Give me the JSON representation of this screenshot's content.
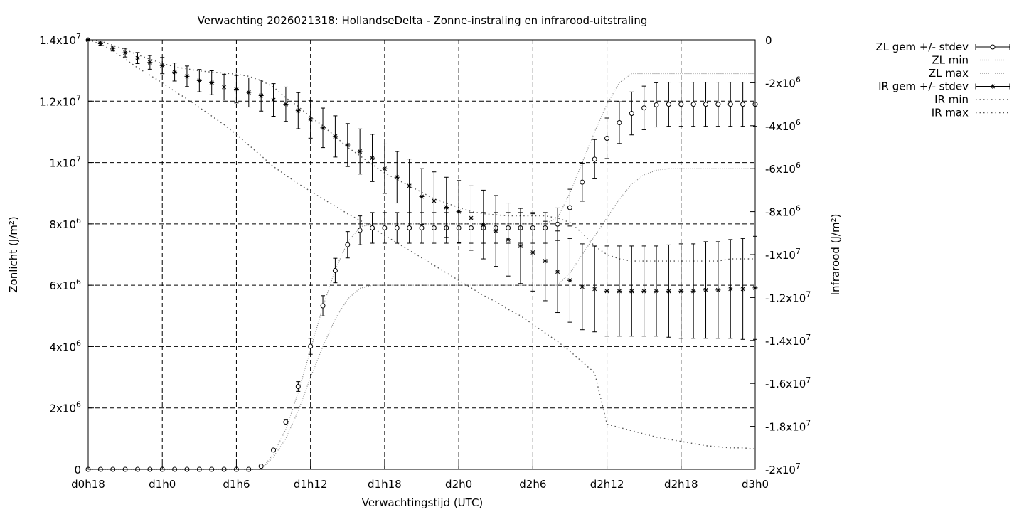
{
  "chart_data": {
    "type": "line",
    "title": "Verwachting 2026021318: HollandseDelta - Zonne-instraling en infrarood-uitstraling",
    "xlabel": "Verwachtingstijd (UTC)",
    "ylabel": "Zonlicht (J/m²)",
    "y2label": "Infrarood (J/m²)",
    "xlim": [
      18,
      72
    ],
    "ylim": [
      0,
      14000000
    ],
    "y2lim": [
      -20000000,
      0
    ],
    "grid": true,
    "legend_position": "right-outside-top",
    "x_ticks": [
      {
        "x": 18,
        "label": "d0h18"
      },
      {
        "x": 24,
        "label": "d1h0"
      },
      {
        "x": 30,
        "label": "d1h6"
      },
      {
        "x": 36,
        "label": "d1h12"
      },
      {
        "x": 42,
        "label": "d1h18"
      },
      {
        "x": 48,
        "label": "d2h0"
      },
      {
        "x": 54,
        "label": "d2h6"
      },
      {
        "x": 60,
        "label": "d2h12"
      },
      {
        "x": 66,
        "label": "d2h18"
      },
      {
        "x": 72,
        "label": "d3h0"
      }
    ],
    "y_ticks": [
      {
        "v": 0,
        "m": "0",
        "e": ""
      },
      {
        "v": 2000000,
        "m": "2x10",
        "e": "6"
      },
      {
        "v": 4000000,
        "m": "4x10",
        "e": "6"
      },
      {
        "v": 6000000,
        "m": "6x10",
        "e": "6"
      },
      {
        "v": 8000000,
        "m": "8x10",
        "e": "6"
      },
      {
        "v": 10000000,
        "m": "1x10",
        "e": "7"
      },
      {
        "v": 12000000,
        "m": "1.2x10",
        "e": "7"
      },
      {
        "v": 14000000,
        "m": "1.4x10",
        "e": "7"
      }
    ],
    "y2_ticks": [
      {
        "v": 0,
        "m": "0",
        "e": ""
      },
      {
        "v": -2000000,
        "m": "-2x10",
        "e": "6"
      },
      {
        "v": -4000000,
        "m": "-4x10",
        "e": "6"
      },
      {
        "v": -6000000,
        "m": "-6x10",
        "e": "6"
      },
      {
        "v": -8000000,
        "m": "-8x10",
        "e": "6"
      },
      {
        "v": -10000000,
        "m": "-1x10",
        "e": "7"
      },
      {
        "v": -12000000,
        "m": "-1.2x10",
        "e": "7"
      },
      {
        "v": -14000000,
        "m": "-1.4x10",
        "e": "7"
      },
      {
        "v": -16000000,
        "m": "-1.6x10",
        "e": "7"
      },
      {
        "v": -18000000,
        "m": "-1.8x10",
        "e": "7"
      },
      {
        "v": -20000000,
        "m": "-2x10",
        "e": "7"
      }
    ],
    "x": [
      18,
      19,
      20,
      21,
      22,
      23,
      24,
      25,
      26,
      27,
      28,
      29,
      30,
      31,
      32,
      33,
      34,
      35,
      36,
      37,
      38,
      39,
      40,
      41,
      42,
      43,
      44,
      45,
      46,
      47,
      48,
      49,
      50,
      51,
      52,
      53,
      54,
      55,
      56,
      57,
      58,
      59,
      60,
      61,
      62,
      63,
      64,
      65,
      66,
      67,
      68,
      69,
      70,
      71,
      72
    ],
    "series": [
      {
        "name": "ZL gem +/- stdev",
        "axis": "y",
        "marker": "circle",
        "values": [
          0,
          0,
          0,
          0,
          0,
          0,
          0,
          0,
          0,
          0,
          0,
          0,
          0,
          0,
          100000,
          630000,
          1540000,
          2700000,
          4010000,
          5330000,
          6480000,
          7320000,
          7790000,
          7870000,
          7870000,
          7870000,
          7870000,
          7870000,
          7870000,
          7870000,
          7870000,
          7870000,
          7870000,
          7870000,
          7870000,
          7870000,
          7870000,
          7870000,
          7990000,
          8530000,
          9360000,
          10110000,
          10790000,
          11300000,
          11600000,
          11780000,
          11880000,
          11900000,
          11900000,
          11900000,
          11900000,
          11900000,
          11900000,
          11900000,
          11900000
        ],
        "stdev": [
          0,
          0,
          0,
          0,
          0,
          0,
          0,
          0,
          0,
          0,
          0,
          0,
          0,
          0,
          10000,
          40000,
          90000,
          160000,
          260000,
          330000,
          400000,
          430000,
          470000,
          500000,
          500000,
          500000,
          500000,
          500000,
          500000,
          500000,
          500000,
          500000,
          500000,
          500000,
          500000,
          500000,
          500000,
          500000,
          530000,
          600000,
          620000,
          640000,
          660000,
          680000,
          700000,
          710000,
          720000,
          720000,
          720000,
          720000,
          720000,
          720000,
          720000,
          720000,
          720000
        ]
      },
      {
        "name": "ZL min",
        "axis": "y",
        "values": [
          0,
          0,
          0,
          0,
          0,
          0,
          0,
          0,
          0,
          0,
          0,
          0,
          0,
          0,
          0,
          400000,
          1000000,
          1900000,
          3000000,
          4000000,
          4900000,
          5550000,
          5900000,
          6000000,
          6000000,
          6000000,
          6000000,
          6000000,
          6000000,
          6000000,
          6000000,
          6000000,
          6000000,
          6000000,
          6000000,
          6000000,
          6000000,
          6000000,
          6000000,
          6400000,
          7000000,
          7600000,
          8200000,
          8800000,
          9300000,
          9600000,
          9750000,
          9800000,
          9800000,
          9800000,
          9800000,
          9800000,
          9800000,
          9800000,
          9800000
        ]
      },
      {
        "name": "ZL max",
        "axis": "y",
        "values": [
          0,
          0,
          0,
          0,
          0,
          0,
          0,
          0,
          0,
          0,
          0,
          0,
          0,
          0,
          0,
          500000,
          1300000,
          2500000,
          3900000,
          5300000,
          6500000,
          7400000,
          7900000,
          8000000,
          8000000,
          8000000,
          8000000,
          8000000,
          8000000,
          8000000,
          8000000,
          8000000,
          8000000,
          8000000,
          8000000,
          8000000,
          8000000,
          8000000,
          8200000,
          9000000,
          10000000,
          11000000,
          11900000,
          12600000,
          12900000,
          12900000,
          12900000,
          12900000,
          12900000,
          12900000,
          12900000,
          12900000,
          12900000,
          12900000,
          12900000
        ]
      },
      {
        "name": "IR gem +/- stdev",
        "axis": "y2",
        "marker": "star",
        "values": [
          0,
          -180000,
          -400000,
          -600000,
          -850000,
          -1050000,
          -1200000,
          -1500000,
          -1700000,
          -1900000,
          -2000000,
          -2200000,
          -2300000,
          -2450000,
          -2600000,
          -2800000,
          -3000000,
          -3300000,
          -3700000,
          -4100000,
          -4500000,
          -4900000,
          -5200000,
          -5500000,
          -6000000,
          -6400000,
          -6800000,
          -7300000,
          -7500000,
          -7800000,
          -8000000,
          -8300000,
          -8600000,
          -8900000,
          -9300000,
          -9600000,
          -9900000,
          -10300000,
          -10800000,
          -11200000,
          -11500000,
          -11600000,
          -11700000,
          -11700000,
          -11700000,
          -11700000,
          -11700000,
          -11700000,
          -11700000,
          -11700000,
          -11650000,
          -11650000,
          -11600000,
          -11600000,
          -11550000
        ],
        "stdev": [
          30000,
          80000,
          120000,
          200000,
          260000,
          320000,
          380000,
          420000,
          480000,
          520000,
          560000,
          600000,
          640000,
          680000,
          720000,
          760000,
          800000,
          840000,
          880000,
          920000,
          960000,
          1000000,
          1050000,
          1100000,
          1150000,
          1200000,
          1250000,
          1300000,
          1350000,
          1400000,
          1450000,
          1500000,
          1600000,
          1650000,
          1700000,
          1750000,
          1800000,
          1850000,
          1900000,
          1950000,
          2000000,
          2000000,
          2100000,
          2100000,
          2100000,
          2100000,
          2100000,
          2150000,
          2200000,
          2200000,
          2250000,
          2250000,
          2300000,
          2350000,
          2400000
        ]
      },
      {
        "name": "IR min",
        "axis": "y2",
        "values": [
          0,
          -200000,
          -500000,
          -900000,
          -1300000,
          -1650000,
          -2000000,
          -2400000,
          -2750000,
          -3150000,
          -3550000,
          -3950000,
          -4400000,
          -4900000,
          -5400000,
          -5900000,
          -6300000,
          -6700000,
          -7050000,
          -7400000,
          -7750000,
          -8100000,
          -8400000,
          -8750000,
          -9100000,
          -9450000,
          -9800000,
          -10150000,
          -10500000,
          -10850000,
          -11200000,
          -11550000,
          -11900000,
          -12200000,
          -12550000,
          -12850000,
          -13250000,
          -13650000,
          -14050000,
          -14500000,
          -15000000,
          -15500000,
          -17900000,
          -18050000,
          -18200000,
          -18350000,
          -18500000,
          -18600000,
          -18700000,
          -18800000,
          -18900000,
          -18950000,
          -19000000,
          -19000000,
          -19050000
        ]
      },
      {
        "name": "IR max",
        "axis": "y2",
        "values": [
          0,
          -60000,
          -250000,
          -450000,
          -700000,
          -900000,
          -1100000,
          -1250000,
          -1350000,
          -1450000,
          -1500000,
          -1550000,
          -1600000,
          -1700000,
          -1900000,
          -2200000,
          -2700000,
          -3100000,
          -3600000,
          -4000000,
          -4500000,
          -5000000,
          -5400000,
          -5800000,
          -6200000,
          -6500000,
          -6800000,
          -7100000,
          -7400000,
          -7600000,
          -7800000,
          -8000000,
          -8100000,
          -8150000,
          -8200000,
          -8200000,
          -8200000,
          -8200000,
          -8300000,
          -8500000,
          -9000000,
          -9600000,
          -10000000,
          -10200000,
          -10300000,
          -10300000,
          -10300000,
          -10300000,
          -10300000,
          -10300000,
          -10300000,
          -10300000,
          -10200000,
          -10200000,
          -10200000
        ]
      }
    ]
  }
}
